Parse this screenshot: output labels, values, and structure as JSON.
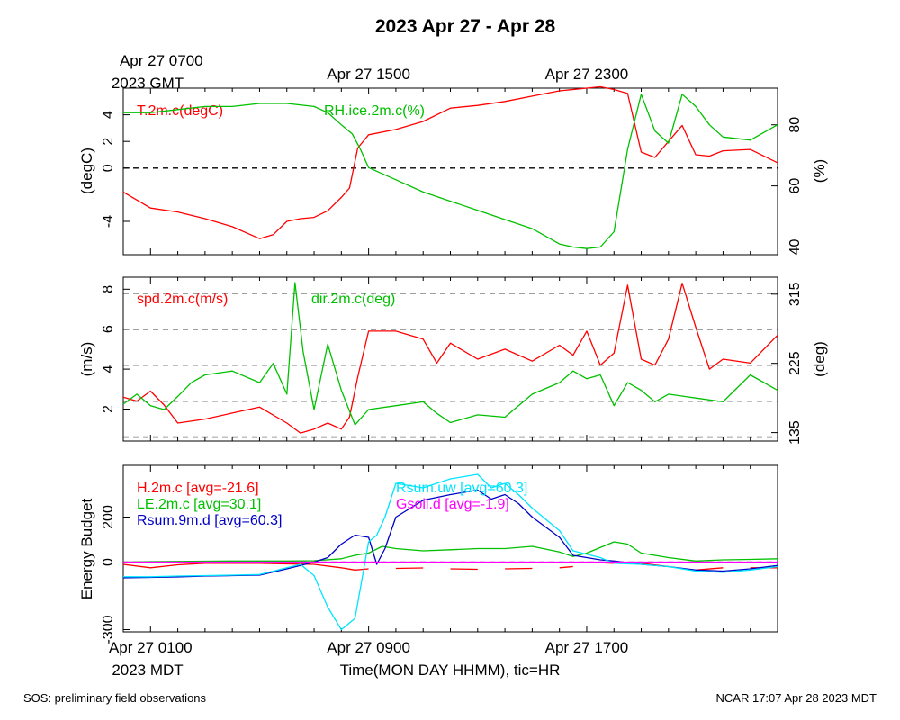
{
  "title": "2023 Apr 27 - Apr 28",
  "top_axis": {
    "labels": [
      {
        "text": "Apr 27 0700",
        "hour": 1
      },
      {
        "text": "Apr 27 1500",
        "hour": 9
      },
      {
        "text": "Apr 27 2300",
        "hour": 17
      }
    ],
    "sublabel": "2023 GMT"
  },
  "bottom_axis": {
    "labels": [
      {
        "text": "Apr 27 0100",
        "hour": 1
      },
      {
        "text": "Apr 27 0900",
        "hour": 9
      },
      {
        "text": "Apr 27 1700",
        "hour": 17
      }
    ],
    "sublabel": "2023 MDT",
    "xlabel": "Time(MON DAY HHMM), tic=HR"
  },
  "footer": {
    "left": "SOS: preliminary field observations",
    "right": "NCAR 17:07 Apr 28 2023 MDT"
  },
  "colors": {
    "red": "#ff0000",
    "green": "#00c000",
    "cyan": "#00e5ff",
    "blue": "#0000c8",
    "magenta": "#ff00ff"
  },
  "chart_data": [
    {
      "type": "line",
      "panel": "temperature-humidity",
      "x_unit": "hours since Apr 27 0000 MDT",
      "xlim": [
        0,
        24
      ],
      "ylabel": "(degC)",
      "ylim": [
        -6.5,
        6
      ],
      "yticks": [
        -4,
        0,
        2,
        4
      ],
      "zero_line": 0,
      "y2label": "(%)",
      "y2lim": [
        37.5,
        92
      ],
      "y2ticks": [
        40,
        60,
        80
      ],
      "series": [
        {
          "name": "T.2m.c(degC)",
          "axis": "left",
          "color": "#ff0000",
          "x": [
            0,
            1,
            2,
            3,
            4,
            5,
            5.5,
            6,
            6.5,
            7,
            7.5,
            8,
            8.3,
            8.6,
            9,
            10,
            11,
            12,
            13,
            14,
            15,
            16,
            17,
            17.5,
            18,
            18.5,
            19,
            19.5,
            20,
            20.5,
            21,
            21.5,
            22,
            23,
            24
          ],
          "y": [
            -1.8,
            -3.0,
            -3.3,
            -3.8,
            -4.4,
            -5.3,
            -5.0,
            -4.0,
            -3.8,
            -3.7,
            -3.2,
            -2.2,
            -1.5,
            1.5,
            2.5,
            2.9,
            3.5,
            4.5,
            4.7,
            5.0,
            5.4,
            5.8,
            6.0,
            6.1,
            5.9,
            5.6,
            1.2,
            0.8,
            2.0,
            3.2,
            1.0,
            0.9,
            1.3,
            1.4,
            0.4
          ]
        },
        {
          "name": "RH.ice.2m.c(%)",
          "axis": "right",
          "color": "#00c000",
          "x": [
            0,
            1,
            2,
            3,
            4,
            5,
            6,
            7,
            7.5,
            8,
            8.4,
            8.7,
            9,
            10,
            11,
            12,
            13,
            14,
            15,
            16,
            16.5,
            17,
            17.5,
            18,
            18.5,
            19,
            19.5,
            20,
            20.5,
            21,
            21.5,
            22,
            23,
            24
          ],
          "y": [
            84,
            84,
            85,
            86,
            86,
            87,
            87,
            86,
            84,
            80,
            77,
            72,
            66,
            62,
            58,
            55,
            52,
            49,
            46,
            41,
            40,
            39.5,
            40,
            45,
            72,
            90,
            78,
            74,
            90,
            86,
            80,
            76,
            75,
            80
          ]
        }
      ]
    },
    {
      "type": "line",
      "panel": "wind",
      "x_unit": "hours since Apr 27 0000 MDT",
      "xlim": [
        0,
        24
      ],
      "ylabel": "(m/s)",
      "ylim": [
        0.4,
        8.6
      ],
      "yticks": [
        2,
        4,
        6,
        8
      ],
      "y2label": "(deg)",
      "y2lim": [
        124,
        337
      ],
      "y2ticks": [
        135,
        225,
        315
      ],
      "dashed_levels": [
        0.6,
        2.4,
        4.2,
        6.0,
        7.8
      ],
      "series": [
        {
          "name": "spd.2m.c(m/s)",
          "axis": "left",
          "color": "#ff0000",
          "x": [
            0,
            0.5,
            1,
            1.5,
            2,
            3,
            4,
            5,
            6,
            6.5,
            7,
            7.5,
            8,
            8.3,
            8.6,
            9,
            10,
            11,
            11.5,
            12,
            13,
            14,
            15,
            16,
            16.5,
            17,
            17.5,
            18,
            18.5,
            19,
            19.5,
            20,
            20.5,
            21,
            21.5,
            22,
            23,
            24
          ],
          "y": [
            2.6,
            2.4,
            2.9,
            2.2,
            1.3,
            1.5,
            1.8,
            2.1,
            1.3,
            0.8,
            1.0,
            1.3,
            1.0,
            1.6,
            3.6,
            5.9,
            5.9,
            5.5,
            4.3,
            5.3,
            4.5,
            5.0,
            4.4,
            5.2,
            4.7,
            5.9,
            4.2,
            4.8,
            8.2,
            4.5,
            4.2,
            5.5,
            8.3,
            6.1,
            4.0,
            4.5,
            4.3,
            5.7
          ]
        },
        {
          "name": "dir.2m.c(deg)",
          "axis": "right",
          "color": "#00c000",
          "x": [
            0,
            0.5,
            1,
            1.5,
            2,
            2.5,
            3,
            4,
            5,
            5.5,
            6,
            6.3,
            6.6,
            7,
            7.5,
            8,
            8.5,
            9,
            10,
            11,
            11.5,
            12,
            13,
            14,
            15,
            16,
            16.5,
            17,
            17.5,
            18,
            18.5,
            19,
            19.5,
            20,
            21,
            22,
            23,
            24
          ],
          "y": [
            172,
            185,
            170,
            165,
            182,
            200,
            210,
            215,
            200,
            225,
            185,
            330,
            240,
            165,
            250,
            190,
            145,
            165,
            170,
            175,
            160,
            148,
            158,
            155,
            185,
            200,
            215,
            205,
            210,
            170,
            200,
            190,
            175,
            185,
            180,
            175,
            210,
            190
          ]
        }
      ]
    },
    {
      "type": "line",
      "panel": "energy-budget",
      "x_unit": "hours since Apr 27 0000 MDT",
      "xlim": [
        0,
        24
      ],
      "ylabel": "Energy Budget",
      "ylim": [
        -310,
        430
      ],
      "yticks": [
        -300,
        0,
        200
      ],
      "zero_line": 0,
      "series": [
        {
          "name": "H.2m.c [avg=-21.6]",
          "color": "#ff0000",
          "x": [
            0,
            1,
            2,
            3,
            4,
            5,
            6,
            7,
            8,
            8.5,
            9,
            10,
            11,
            12,
            13,
            14,
            15,
            16,
            16.5,
            17,
            18,
            19,
            20,
            21,
            22,
            23,
            24
          ],
          "y": [
            -10,
            -25,
            -12,
            -5,
            -5,
            -5,
            -8,
            -10,
            -25,
            -35,
            -30,
            -28,
            -26,
            -30,
            -32,
            -30,
            -28,
            -25,
            -20,
            0,
            -5,
            -5,
            -20,
            -35,
            -25,
            -25,
            -25
          ],
          "gaps_after_hour": 9
        },
        {
          "name": "LE.2m.c [avg=30.1]",
          "color": "#00c000",
          "x": [
            0,
            1,
            2,
            3,
            4,
            5,
            6,
            7,
            8,
            8.5,
            9,
            9.5,
            10,
            11,
            12,
            13,
            14,
            15,
            16,
            16.5,
            17,
            18,
            18.5,
            19,
            20,
            21,
            22,
            23,
            24
          ],
          "y": [
            0,
            2,
            3,
            4,
            5,
            5,
            5,
            6,
            15,
            30,
            40,
            70,
            60,
            50,
            55,
            60,
            60,
            70,
            45,
            25,
            40,
            90,
            80,
            40,
            20,
            5,
            10,
            12,
            15
          ]
        },
        {
          "name": "Rsum.9m.d [avg=60.3]",
          "color": "#0000c8",
          "x": [
            0,
            1,
            2,
            3,
            4,
            5,
            6,
            6.5,
            7,
            7.5,
            8,
            8.5,
            9,
            9.3,
            9.6,
            10,
            11,
            12,
            13,
            13.5,
            14,
            14.5,
            15,
            16,
            16.5,
            17,
            17.5,
            18,
            19,
            20,
            21,
            22,
            23,
            24
          ],
          "y": [
            -70,
            -68,
            -66,
            -62,
            -60,
            -58,
            -30,
            -15,
            0,
            20,
            80,
            120,
            110,
            -10,
            60,
            200,
            275,
            300,
            320,
            280,
            300,
            260,
            200,
            110,
            30,
            20,
            10,
            5,
            -10,
            -20,
            -35,
            -40,
            -30,
            -15
          ]
        },
        {
          "name": "Rsum.uw [avg=60.3]",
          "color": "#00e5ff",
          "x": [
            0,
            1,
            2,
            3,
            4,
            5,
            6,
            6.5,
            7,
            7.5,
            8,
            8.5,
            9,
            9.3,
            9.6,
            10,
            11,
            12,
            13,
            13.5,
            14,
            14.5,
            15,
            16,
            16.5,
            17,
            17.5,
            18,
            19,
            20,
            21,
            22,
            23,
            24
          ],
          "y": [
            -65,
            -65,
            -62,
            -60,
            -58,
            -55,
            -25,
            -10,
            -60,
            -200,
            -300,
            -250,
            90,
            120,
            200,
            350,
            330,
            370,
            390,
            330,
            350,
            300,
            240,
            140,
            50,
            35,
            20,
            -5,
            -10,
            -20,
            -40,
            -45,
            -35,
            -20
          ]
        },
        {
          "name": "Gsoil.d [avg=-1.9]",
          "color": "#ff00ff",
          "x": [
            0,
            24
          ],
          "y": [
            0,
            0
          ]
        }
      ]
    }
  ]
}
